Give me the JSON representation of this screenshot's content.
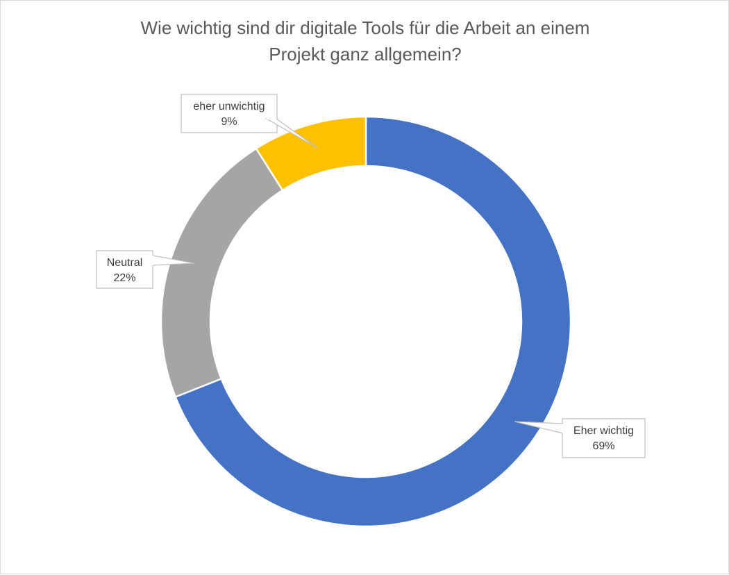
{
  "chart_data": {
    "type": "donut",
    "title_lines": [
      "Wie wichtig sind dir digitale Tools für die Arbeit an einem",
      "Projekt ganz allgemein?"
    ],
    "slices": [
      {
        "label": "Eher wichtig",
        "value": 69,
        "display": "69%",
        "color": "#4472C4"
      },
      {
        "label": "Neutral",
        "value": 22,
        "display": "22%",
        "color": "#A5A5A5"
      },
      {
        "label": "eher unwichtig",
        "value": 9,
        "display": "9%",
        "color": "#FFC000"
      }
    ],
    "start_angle_deg": 0,
    "direction": "clockwise",
    "legend": "none",
    "data_labels": "callouts"
  }
}
